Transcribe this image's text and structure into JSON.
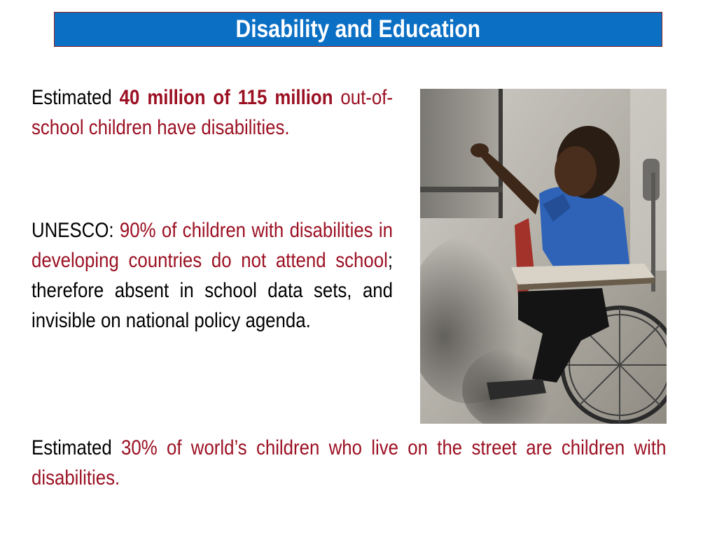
{
  "slide": {
    "title": "Disability and Education",
    "colors": {
      "title_background": "#0b6fc4",
      "title_text": "#ffffff",
      "body_text": "#000000",
      "highlight_text": "#9b1022"
    },
    "paragraph_1": {
      "lead": "Estimated ",
      "highlight_bold": "40 million of 115 million",
      "highlight": " out-of-school children have disabilities."
    },
    "paragraph_2": {
      "lead": "UNESCO: ",
      "highlight": "90% of children with disabilities in developing countries do not attend school",
      "rest": "; therefore absent in school data sets, and invisible on national policy agenda."
    },
    "paragraph_3": {
      "lead": "Estimated ",
      "highlight": "30% of world’s children who live on the street are children with disabilities."
    },
    "photo": {
      "icon": "photo-of-child-in-wheelchair-writing-on-blackboard"
    }
  }
}
